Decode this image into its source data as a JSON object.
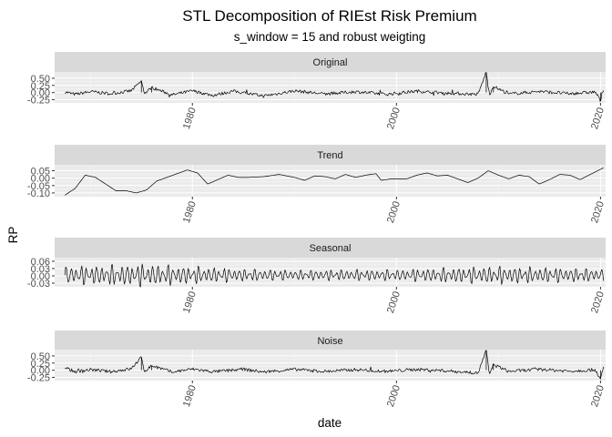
{
  "chart_data": {
    "type": "line",
    "title": "STL Decomposition of RIEst Risk Premium",
    "subtitle": "s_window = 15 and robust weigting",
    "xlabel": "date",
    "ylabel": "RP",
    "x_ticks": [
      "1980",
      "2000",
      "2020"
    ],
    "xlim": [
      1966.5,
      2020.5
    ],
    "grid": true,
    "panel_background": "#ebebeb",
    "strip_background": "#d9d9d9",
    "line_color": "#000000",
    "panels": [
      {
        "name": "Original",
        "ylim": [
          -0.36,
          0.72
        ],
        "yticks": [
          "0.50",
          "0.25",
          "0.00",
          "-0.25"
        ],
        "ytick_values": [
          0.5,
          0.25,
          0.0,
          -0.25
        ],
        "points": [
          [
            1967.5,
            0.02
          ],
          [
            1968.5,
            -0.06
          ],
          [
            1970,
            0.03
          ],
          [
            1972,
            -0.04
          ],
          [
            1974,
            0.06
          ],
          [
            1975,
            0.4
          ],
          [
            1975.3,
            -0.05
          ],
          [
            1976,
            0.18
          ],
          [
            1978,
            -0.08
          ],
          [
            1980,
            0.06
          ],
          [
            1982,
            -0.1
          ],
          [
            1984,
            0.05
          ],
          [
            1987,
            -0.12
          ],
          [
            1990,
            0.06
          ],
          [
            1993,
            -0.05
          ],
          [
            1996,
            0.03
          ],
          [
            1999,
            -0.06
          ],
          [
            2002,
            0.05
          ],
          [
            2005,
            -0.02
          ],
          [
            2008,
            -0.06
          ],
          [
            2008.8,
            0.72
          ],
          [
            2009.1,
            -0.1
          ],
          [
            2009.5,
            0.22
          ],
          [
            2011,
            -0.05
          ],
          [
            2014,
            0.04
          ],
          [
            2017,
            -0.04
          ],
          [
            2019.5,
            0.02
          ],
          [
            2020,
            -0.3
          ],
          [
            2020.3,
            0.12
          ]
        ]
      },
      {
        "name": "Trend",
        "ylim": [
          -0.125,
          0.09
        ],
        "yticks": [
          "0.05",
          "0.00",
          "-0.05",
          "-0.10"
        ],
        "ytick_values": [
          0.05,
          0.0,
          -0.05,
          -0.1
        ],
        "points": [
          [
            1967.5,
            -0.115
          ],
          [
            1968.5,
            -0.07
          ],
          [
            1969.5,
            0.02
          ],
          [
            1970.5,
            0.005
          ],
          [
            1971.5,
            -0.04
          ],
          [
            1972.5,
            -0.085
          ],
          [
            1973.5,
            -0.085
          ],
          [
            1974.5,
            -0.1
          ],
          [
            1975.5,
            -0.08
          ],
          [
            1976.5,
            -0.02
          ],
          [
            1977.5,
            0.005
          ],
          [
            1978.5,
            0.03
          ],
          [
            1979.5,
            0.055
          ],
          [
            1980.5,
            0.035
          ],
          [
            1981.5,
            -0.04
          ],
          [
            1982.5,
            -0.01
          ],
          [
            1983.5,
            0.02
          ],
          [
            1984.5,
            0.005
          ],
          [
            1985.5,
            0.005
          ],
          [
            1987,
            0.01
          ],
          [
            1988.5,
            0.025
          ],
          [
            1990,
            0.005
          ],
          [
            1991,
            -0.015
          ],
          [
            1992,
            0.015
          ],
          [
            1993,
            0.01
          ],
          [
            1994,
            -0.005
          ],
          [
            1995,
            0.025
          ],
          [
            1996,
            0.005
          ],
          [
            1997,
            0.02
          ],
          [
            1998,
            0.03
          ],
          [
            1998.5,
            -0.015
          ],
          [
            1999.5,
            -0.005
          ],
          [
            2001,
            -0.005
          ],
          [
            2002,
            0.02
          ],
          [
            2003,
            0.035
          ],
          [
            2004,
            0.015
          ],
          [
            2005,
            0.02
          ],
          [
            2006,
            -0.005
          ],
          [
            2007,
            -0.03
          ],
          [
            2008,
            0.0
          ],
          [
            2009,
            0.05
          ],
          [
            2010,
            0.02
          ],
          [
            2011,
            -0.005
          ],
          [
            2012,
            0.02
          ],
          [
            2013,
            0.01
          ],
          [
            2014,
            -0.04
          ],
          [
            2015,
            -0.01
          ],
          [
            2016,
            0.025
          ],
          [
            2017,
            0.02
          ],
          [
            2018,
            -0.01
          ],
          [
            2019,
            0.025
          ],
          [
            2020.3,
            0.07
          ]
        ]
      },
      {
        "name": "Seasonal",
        "ylim": [
          -0.045,
          0.075
        ],
        "yticks": [
          "0.06",
          "0.03",
          "0.00",
          "-0.03"
        ],
        "ytick_values": [
          0.06,
          0.03,
          0.0,
          -0.03
        ],
        "amplitude_by_year": [
          [
            1967.5,
            0.035
          ],
          [
            1975,
            0.045
          ],
          [
            1980,
            0.035
          ],
          [
            1985,
            0.025
          ],
          [
            1990,
            0.02
          ],
          [
            1995,
            0.022
          ],
          [
            2000,
            0.022
          ],
          [
            2005,
            0.03
          ],
          [
            2010,
            0.035
          ],
          [
            2015,
            0.03
          ],
          [
            2020.3,
            0.025
          ]
        ]
      },
      {
        "name": "Noise",
        "ylim": [
          -0.36,
          0.72
        ],
        "yticks": [
          "0.50",
          "0.25",
          "0.00",
          "-0.25"
        ],
        "ytick_values": [
          0.5,
          0.25,
          0.0,
          -0.25
        ],
        "points": [
          [
            1967.5,
            0.08
          ],
          [
            1968.5,
            -0.05
          ],
          [
            1970,
            0.02
          ],
          [
            1972,
            -0.05
          ],
          [
            1974,
            0.05
          ],
          [
            1975,
            0.45
          ],
          [
            1975.3,
            -0.04
          ],
          [
            1976,
            0.16
          ],
          [
            1978,
            -0.06
          ],
          [
            1980,
            0.04
          ],
          [
            1982,
            -0.05
          ],
          [
            1985,
            0.03
          ],
          [
            1987,
            -0.06
          ],
          [
            1990,
            0.03
          ],
          [
            1993,
            -0.04
          ],
          [
            1996,
            0.02
          ],
          [
            1999,
            -0.04
          ],
          [
            2002,
            0.03
          ],
          [
            2005,
            -0.02
          ],
          [
            2008,
            -0.1
          ],
          [
            2008.8,
            0.7
          ],
          [
            2009.1,
            -0.15
          ],
          [
            2009.5,
            0.2
          ],
          [
            2011,
            -0.04
          ],
          [
            2014,
            0.03
          ],
          [
            2017,
            -0.03
          ],
          [
            2019.5,
            0.02
          ],
          [
            2020,
            -0.32
          ],
          [
            2020.3,
            0.1
          ]
        ]
      }
    ]
  }
}
